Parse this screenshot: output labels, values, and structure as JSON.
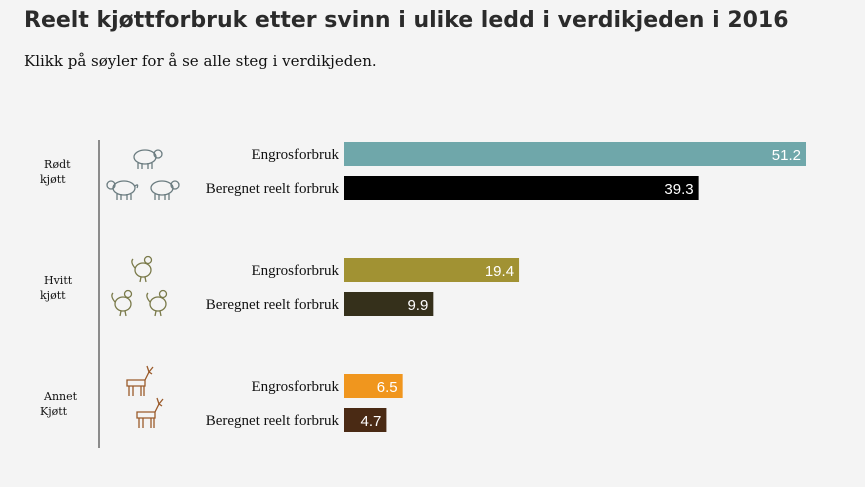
{
  "title": "Reelt kjøttforbruk etter svinn i ulike ledd i verdikjeden i 2016",
  "subtitle": "Klikk på søyler for å se alle steg i verdikjeden.",
  "chart_data": {
    "type": "bar",
    "orientation": "horizontal",
    "groups": [
      {
        "label_lines": [
          "Rødt",
          "kjøtt"
        ],
        "icons": [
          "cow-icon",
          "pig-icon",
          "sheep-icon"
        ],
        "icon_color": "#6b7c80",
        "bars": [
          {
            "label": "Engrosforbruk",
            "value": 51.2,
            "value_text": "51.2",
            "color": "#6fa7aa"
          },
          {
            "label": "Beregnet reelt forbruk",
            "value": 39.3,
            "value_text": "39.3",
            "color": "#000000"
          }
        ]
      },
      {
        "label_lines": [
          "Hvitt",
          "kjøtt"
        ],
        "icons": [
          "chicken-icon",
          "duck-icon",
          "turkey-icon"
        ],
        "icon_color": "#7a7a4a",
        "bars": [
          {
            "label": "Engrosforbruk",
            "value": 19.4,
            "value_text": "19.4",
            "color": "#a19233"
          },
          {
            "label": "Beregnet reelt forbruk",
            "value": 9.9,
            "value_text": "9.9",
            "color": "#35301b"
          }
        ]
      },
      {
        "label_lines": [
          "Annet",
          "Kjøtt"
        ],
        "icons": [
          "deer-icon",
          "goat-icon"
        ],
        "icon_color": "#9a5a2a",
        "bars": [
          {
            "label": "Engrosforbruk",
            "value": 6.5,
            "value_text": "6.5",
            "color": "#f0961e"
          },
          {
            "label": "Beregnet reelt forbruk",
            "value": 4.7,
            "value_text": "4.7",
            "color": "#4a2a14"
          }
        ]
      }
    ],
    "xlim": [
      0,
      51.2
    ],
    "grid": false,
    "legend": "none"
  }
}
